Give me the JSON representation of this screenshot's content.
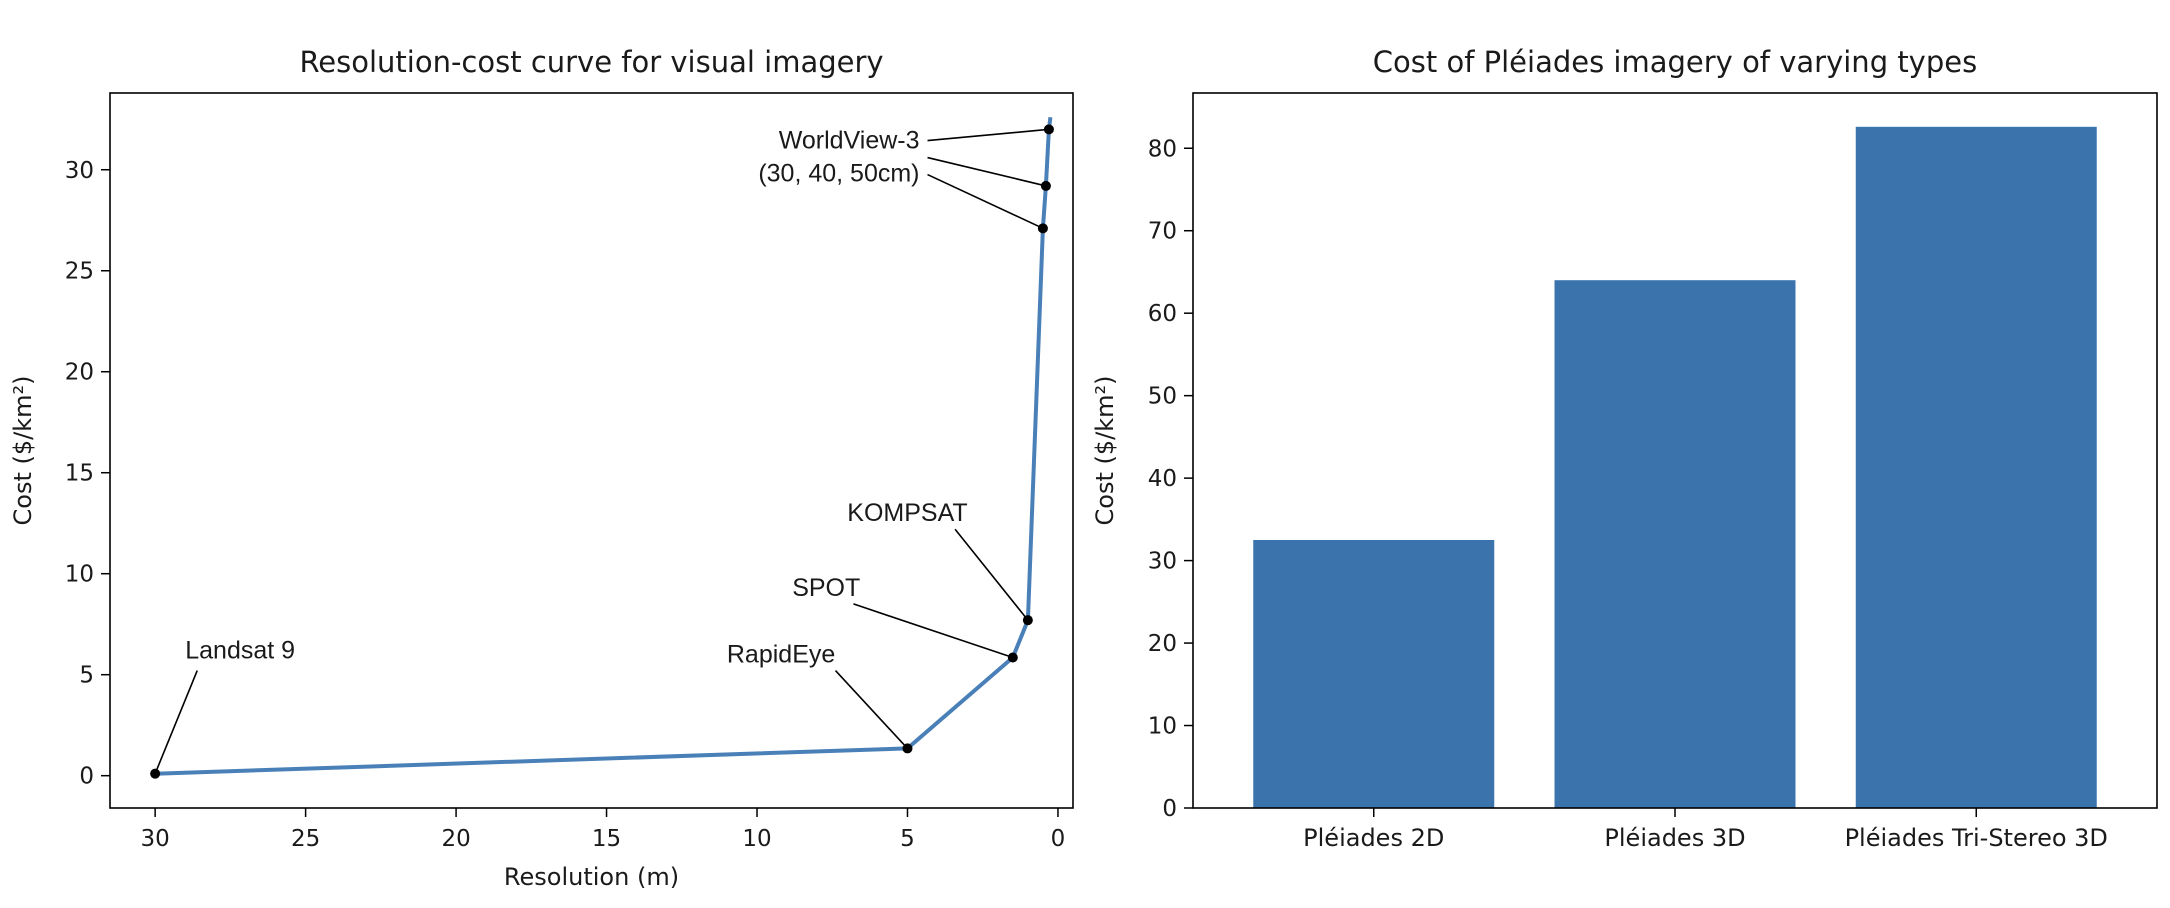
{
  "chart_data": [
    {
      "type": "line",
      "title": "Resolution-cost curve for visual imagery",
      "xlabel": "Resolution (m)",
      "ylabel": "Cost ($/km²)",
      "x_axis_inverted": true,
      "xlim": [
        31.5,
        -0.5
      ],
      "ylim": [
        -1.6,
        33.8
      ],
      "xticks": [
        30,
        25,
        20,
        15,
        10,
        5,
        0
      ],
      "yticks": [
        0,
        5,
        10,
        15,
        20,
        25,
        30
      ],
      "grid": false,
      "line_color": "#4a80b8",
      "series": [
        {
          "x": [
            30,
            5,
            1.5,
            1,
            0.5,
            0.4,
            0.3,
            0.25
          ],
          "y": [
            0.1,
            1.35,
            5.85,
            7.7,
            27.1,
            29.2,
            32.0,
            32.6
          ]
        }
      ],
      "points": [
        {
          "x": 30,
          "y": 0.1
        },
        {
          "x": 5,
          "y": 1.35
        },
        {
          "x": 1.5,
          "y": 5.85
        },
        {
          "x": 1,
          "y": 7.7
        },
        {
          "x": 0.5,
          "y": 27.1
        },
        {
          "x": 0.4,
          "y": 29.2
        },
        {
          "x": 0.3,
          "y": 32.0
        }
      ],
      "annotations": [
        {
          "lines": [
            "Landsat 9"
          ],
          "text_x": 29,
          "text_y": 5.8,
          "anchor": "start",
          "targets": [
            [
              30,
              0.1
            ]
          ]
        },
        {
          "lines": [
            "RapidEye"
          ],
          "text_x": 9.2,
          "text_y": 5.6,
          "anchor": "middle",
          "targets": [
            [
              5,
              1.35
            ]
          ]
        },
        {
          "lines": [
            "SPOT"
          ],
          "text_x": 7.7,
          "text_y": 8.9,
          "anchor": "middle",
          "targets": [
            [
              1.5,
              5.85
            ]
          ]
        },
        {
          "lines": [
            "KOMPSAT"
          ],
          "text_x": 5,
          "text_y": 12.6,
          "anchor": "middle",
          "targets": [
            [
              1,
              7.7
            ]
          ]
        },
        {
          "lines": [
            "WorldView-3",
            "(30, 40, 50cm)"
          ],
          "text_x": 4.6,
          "text_y": 31.05,
          "anchor": "end",
          "targets": [
            [
              0.3,
              32.0
            ],
            [
              0.4,
              29.2
            ],
            [
              0.5,
              27.1
            ]
          ]
        }
      ]
    },
    {
      "type": "bar",
      "title": "Cost of Pléiades imagery of varying types",
      "ylabel": "Cost ($/km²)",
      "categories": [
        "Pléiades 2D",
        "Pléiades 3D",
        "Pléiades Tri-Stereo 3D"
      ],
      "values": [
        32.5,
        64,
        82.6
      ],
      "ylim": [
        0,
        86.7
      ],
      "yticks": [
        0,
        10,
        20,
        30,
        40,
        50,
        60,
        70,
        80
      ],
      "grid": false,
      "bar_color": "#3b74ad"
    }
  ]
}
